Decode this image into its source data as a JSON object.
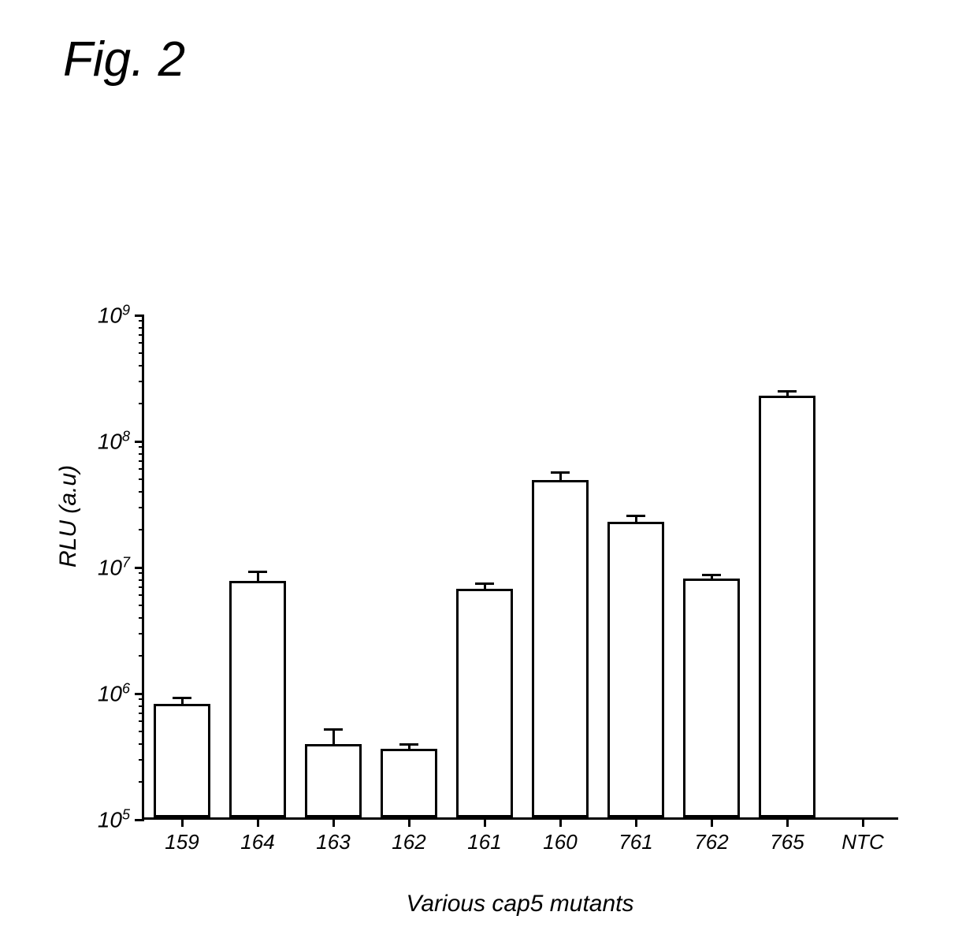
{
  "figure": {
    "title": "Fig. 2",
    "title_fontsize": 62,
    "title_font_style": "italic",
    "background_color": "#ffffff",
    "text_color": "#000000"
  },
  "chart": {
    "type": "bar",
    "scale": "log",
    "ylabel": "RLU (a.u)",
    "xlabel": "Various cap5 mutants",
    "label_fontsize": 30,
    "tick_fontsize": 28,
    "xtick_fontsize": 26,
    "font_style": "italic",
    "axis_color": "#000000",
    "axis_width": 3,
    "bar_fill_color": "#ffffff",
    "bar_border_color": "#000000",
    "bar_border_width": 3,
    "bar_relative_width": 0.74,
    "error_cap_width": 24,
    "ylim_exp": [
      5,
      9
    ],
    "yticks": [
      {
        "exp": 5,
        "base": "10",
        "sup": "5"
      },
      {
        "exp": 6,
        "base": "10",
        "sup": "6"
      },
      {
        "exp": 7,
        "base": "10",
        "sup": "7"
      },
      {
        "exp": 8,
        "base": "10",
        "sup": "8"
      },
      {
        "exp": 9,
        "base": "10",
        "sup": "9"
      }
    ],
    "categories": [
      "159",
      "164",
      "163",
      "162",
      "161",
      "160",
      "761",
      "762",
      "765",
      "NTC"
    ],
    "values": [
      800000.0,
      7500000.0,
      380000.0,
      350000.0,
      6500000.0,
      47000000.0,
      22000000.0,
      7800000.0,
      220000000.0,
      null
    ],
    "error_upper": [
      880000.0,
      8800000.0,
      500000.0,
      380000.0,
      7100000.0,
      54000000.0,
      24500000.0,
      8400000.0,
      240000000.0,
      null
    ]
  }
}
